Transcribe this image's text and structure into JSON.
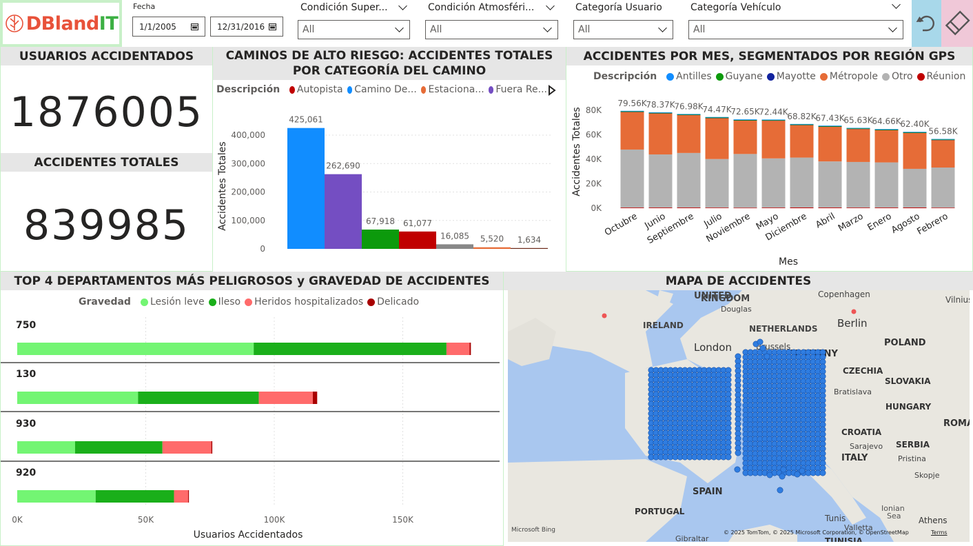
{
  "header": {
    "logo_text": "DBlandIT",
    "fecha_label": "Fecha",
    "fecha_start": "1/1/2005",
    "fecha_end": "12/31/2016",
    "slicers": [
      {
        "label": "Condición Super...",
        "value": "All"
      },
      {
        "label": "Condición Atmosféri...",
        "value": "All"
      },
      {
        "label": "Categoría Usuario",
        "value": "All"
      },
      {
        "label": "Categoría Vehículo",
        "value": "All"
      }
    ],
    "icons": {
      "undo": "undo-icon",
      "eraser": "eraser-icon"
    }
  },
  "kpis": {
    "usuarios_title": "USUARIOS ACCIDENTADOS",
    "usuarios_value": "1876005",
    "accidentes_title": "ACCIDENTES TOTALES",
    "accidentes_value": "839985"
  },
  "roads": {
    "title": "CAMINOS DE ALTO RIESGO: ACCIDENTES TOTALES POR CATEGORÍA DEL CAMINO",
    "legend_title": "Descripción",
    "legend": [
      {
        "name": "Autopista",
        "color": "#c00000"
      },
      {
        "name": "Camino De...",
        "color": "#118dff"
      },
      {
        "name": "Estaciona...",
        "color": "#e66c37"
      },
      {
        "name": "Fuera Re...",
        "color": "#744ec2"
      }
    ]
  },
  "months": {
    "title": "ACCIDENTES POR MES, SEGMENTADOS POR REGIÓN GPS",
    "legend_title": "Descripción"
  },
  "top4": {
    "title": "TOP 4 DEPARTAMENTOS MÁS PELIGROSOS y GRAVEDAD DE ACCIDENTES",
    "legend_title": "Gravedad"
  },
  "map": {
    "title": "MAPA DE ACCIDENTES",
    "labels": [
      "UNITED",
      "KINGDOM",
      "Copenhagen",
      "Vilnius",
      "Douglas",
      "IRELAND",
      "NETHERLANDS",
      "Berlin",
      "POLAND",
      "London",
      "Brussels",
      "GERMANY",
      "CZECHIA",
      "SLOVAKIA",
      "Bratislava",
      "HUNGARY",
      "ROMAN",
      "CROATIA",
      "Sarajevo",
      "SERBIA",
      "ITALY",
      "Pristina",
      "Skopje",
      "SPAIN",
      "PORTUGAL",
      "Tunis",
      "Ionian",
      "Sea",
      "Athens",
      "Valletta",
      "Gibraltar",
      "TUNISIA"
    ],
    "attribution": "© 2025 TomTom, © 2025 Microsoft Corporation, © OpenStreetMap",
    "terms": "Terms",
    "bing": "Microsoft Bing"
  },
  "chart_data": [
    {
      "type": "bar",
      "title": "CAMINOS DE ALTO RIESGO: ACCIDENTES TOTALES POR CATEGORÍA DEL CAMINO",
      "ylabel": "Accidentes Totales",
      "xlabel": "",
      "ylim": [
        0,
        450000
      ],
      "yticks": [
        "400,000",
        "300,000",
        "200,000",
        "100,000",
        "0"
      ],
      "values": [
        425061,
        262690,
        67918,
        61077,
        16085,
        5520,
        1634
      ],
      "labels": [
        "425,061",
        "262,690",
        "67,918",
        "61,077",
        "16,085",
        "5,520",
        "1,634"
      ],
      "colors": [
        "#118dff",
        "#744ec2",
        "#0c9a0c",
        "#c00000",
        "#888888",
        "#e66c37",
        "#6b2a1a"
      ]
    },
    {
      "type": "bar",
      "stacked": true,
      "title": "ACCIDENTES POR MES, SEGMENTADOS POR REGIÓN GPS",
      "ylabel": "Accidentes Totales",
      "xlabel": "Mes",
      "ylim": [
        0,
        85000
      ],
      "yticks": [
        "80K",
        "60K",
        "40K",
        "20K",
        "0K"
      ],
      "categories": [
        "Octubre",
        "Junio",
        "Septiembre",
        "Julio",
        "Noviembre",
        "Mayo",
        "Diciembre",
        "Abril",
        "Marzo",
        "Enero",
        "Agosto",
        "Febrero"
      ],
      "total_labels": [
        "79.56K",
        "78.37K",
        "76.98K",
        "74.47K",
        "72.65K",
        "72.44K",
        "68.82K",
        "67.43K",
        "65.63K",
        "64.66K",
        "62.40K",
        "56.58K"
      ],
      "totals": [
        79560,
        78370,
        76980,
        74470,
        72650,
        72440,
        68820,
        67430,
        65630,
        64660,
        62400,
        56580
      ],
      "series": [
        {
          "name": "Antilles",
          "color": "#118dff",
          "values": [
            400,
            400,
            400,
            400,
            400,
            400,
            400,
            400,
            400,
            400,
            400,
            400
          ]
        },
        {
          "name": "Guyane",
          "color": "#0c9a0c",
          "values": [
            100,
            100,
            100,
            100,
            100,
            100,
            100,
            100,
            100,
            100,
            100,
            100
          ]
        },
        {
          "name": "Mayotte",
          "color": "#12239e",
          "values": [
            50,
            50,
            50,
            50,
            50,
            50,
            50,
            50,
            50,
            50,
            50,
            50
          ]
        },
        {
          "name": "Métropole",
          "color": "#e66c37",
          "values": [
            31100,
            33900,
            31300,
            33800,
            27700,
            31200,
            26900,
            28700,
            27300,
            26700,
            29700,
            22800
          ]
        },
        {
          "name": "Otro",
          "color": "#b3b3b3",
          "values": [
            47400,
            43400,
            44600,
            39700,
            43900,
            40200,
            40800,
            37700,
            37300,
            36900,
            31600,
            32800
          ]
        },
        {
          "name": "Réunion",
          "color": "#c00000",
          "values": [
            510,
            520,
            530,
            470,
            400,
            490,
            570,
            530,
            480,
            510,
            550,
            430
          ]
        }
      ]
    },
    {
      "type": "bar",
      "orientation": "horizontal",
      "stacked": true,
      "title": "TOP 4 DEPARTAMENTOS MÁS PELIGROSOS y GRAVEDAD DE ACCIDENTES",
      "xlabel": "Usuarios Accidentados",
      "xlim": [
        0,
        175000
      ],
      "xticks": [
        {
          "v": 0,
          "t": "0K"
        },
        {
          "v": 50000,
          "t": "50K"
        },
        {
          "v": 100000,
          "t": "100K"
        },
        {
          "v": 150000,
          "t": "150K"
        }
      ],
      "categories": [
        "750",
        "130",
        "930",
        "920"
      ],
      "series": [
        {
          "name": "Lesión leve",
          "color": "#73f573",
          "values": [
            92000,
            47000,
            22500,
            30500
          ]
        },
        {
          "name": "Ileso",
          "color": "#1aaf1a",
          "values": [
            75000,
            47000,
            34000,
            30500
          ]
        },
        {
          "name": "Heridos hospitalizados",
          "color": "#ff6b6b",
          "values": [
            9000,
            21000,
            19000,
            5500
          ]
        },
        {
          "name": "Delicado",
          "color": "#a80000",
          "values": [
            500,
            1700,
            400,
            300
          ]
        }
      ]
    }
  ]
}
